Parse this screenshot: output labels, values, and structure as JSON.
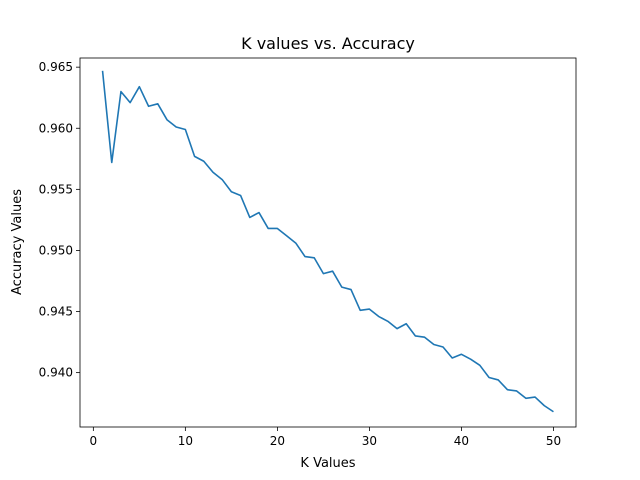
{
  "chart_data": {
    "type": "line",
    "title": "K values vs. Accuracy",
    "xlabel": "K Values",
    "ylabel": "Accuracy Values",
    "xlim": [
      -1.45,
      52.45
    ],
    "ylim": [
      0.93555,
      0.96575
    ],
    "xticks": [
      0,
      10,
      20,
      30,
      40,
      50
    ],
    "yticks": [
      0.94,
      0.945,
      0.95,
      0.955,
      0.96,
      0.965
    ],
    "grid": false,
    "color": "#1f77b4",
    "series": [
      {
        "x": [
          1,
          2,
          3,
          4,
          5,
          6,
          7,
          8,
          9,
          10,
          11,
          12,
          13,
          14,
          15,
          16,
          17,
          18,
          19,
          20,
          21,
          22,
          23,
          24,
          25,
          26,
          27,
          28,
          29,
          30,
          31,
          32,
          33,
          34,
          35,
          36,
          37,
          38,
          39,
          40,
          41,
          42,
          43,
          44,
          45,
          46,
          47,
          48,
          49,
          50
        ],
        "values": [
          0.9647,
          0.9572,
          0.963,
          0.9621,
          0.9634,
          0.9618,
          0.962,
          0.9607,
          0.9601,
          0.9599,
          0.9577,
          0.9573,
          0.9564,
          0.9558,
          0.9548,
          0.9545,
          0.9527,
          0.9531,
          0.9518,
          0.9518,
          0.9512,
          0.9506,
          0.9495,
          0.9494,
          0.9481,
          0.9483,
          0.947,
          0.9468,
          0.9451,
          0.9452,
          0.9446,
          0.9442,
          0.9436,
          0.944,
          0.943,
          0.9429,
          0.9423,
          0.9421,
          0.9412,
          0.9415,
          0.9411,
          0.9406,
          0.9396,
          0.9394,
          0.9386,
          0.9385,
          0.9379,
          0.938,
          0.9373,
          0.9368
        ]
      }
    ]
  }
}
